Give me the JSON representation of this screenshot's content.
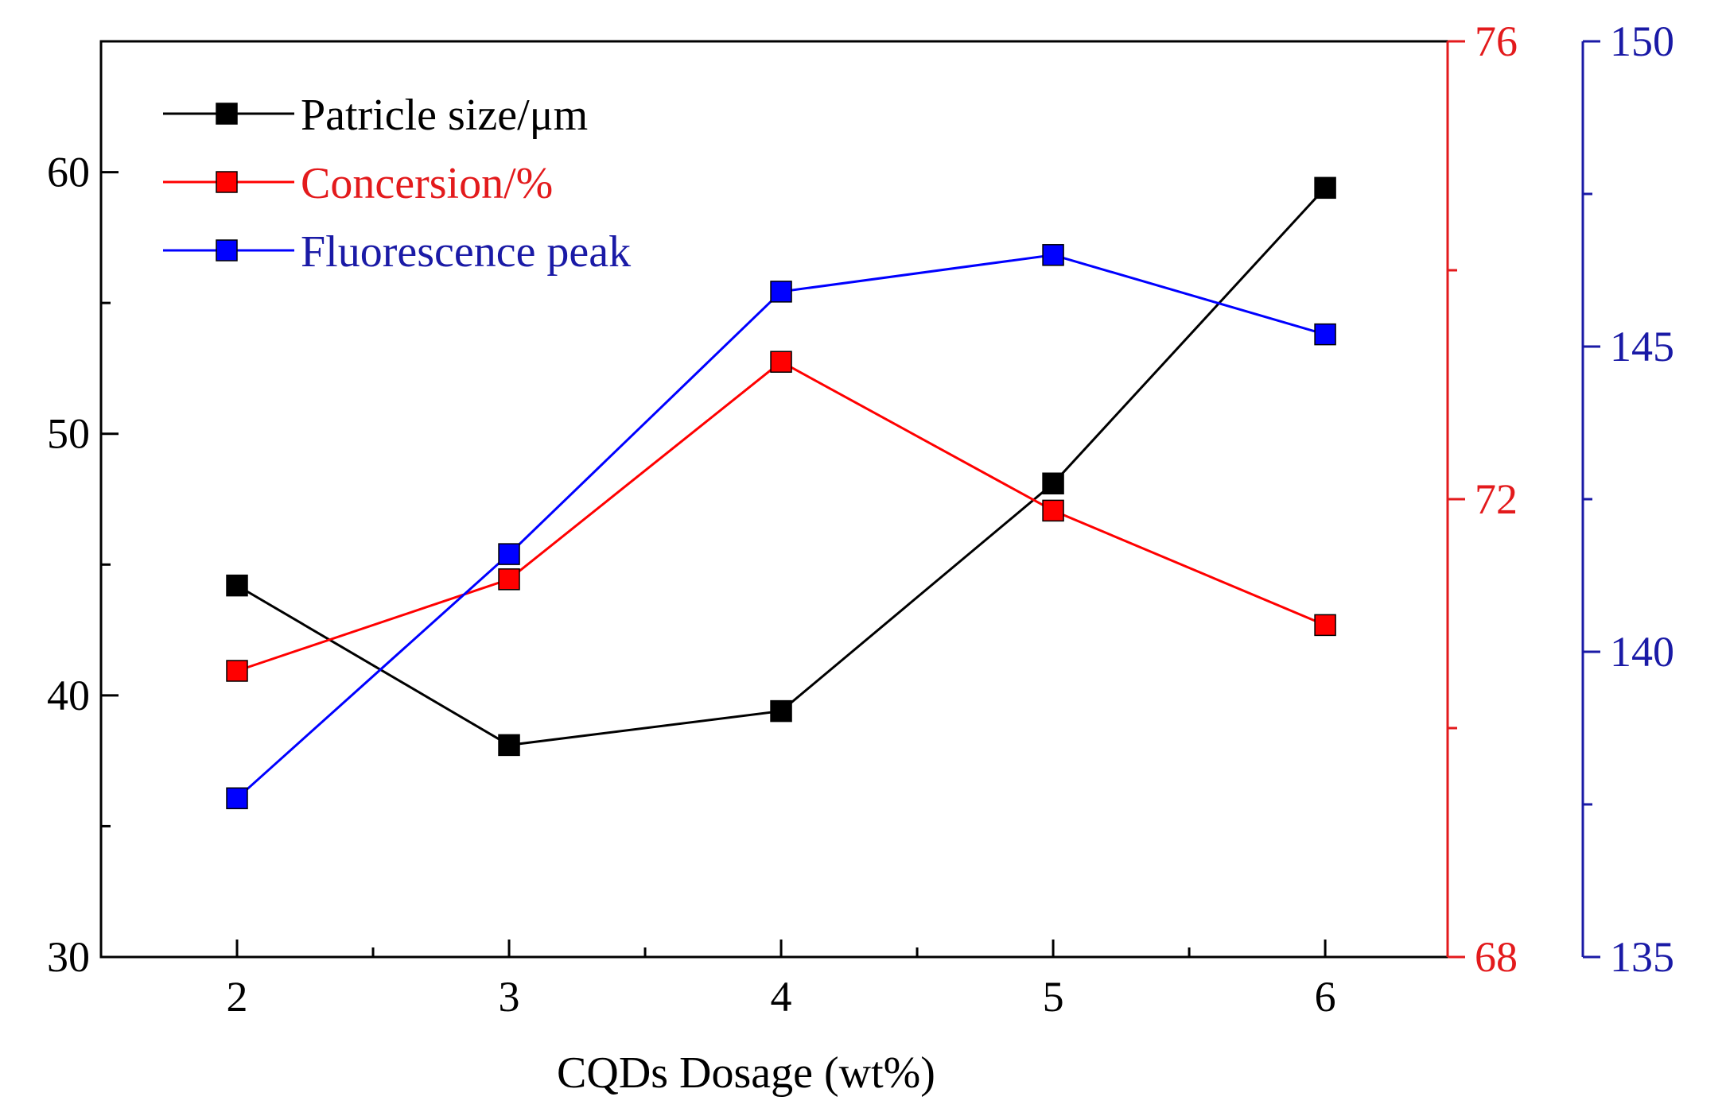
{
  "chart_data": {
    "type": "line",
    "title": "",
    "xlabel": "CQDs Dosage (wt%)",
    "x": [
      2,
      3,
      4,
      5,
      6
    ],
    "x_ticks": [
      "2",
      "3",
      "4",
      "5",
      "6"
    ],
    "xlim": [
      1.5,
      6.45
    ],
    "axes": {
      "left": {
        "ylim": [
          30,
          65
        ],
        "ticks": [
          "30",
          "40",
          "50",
          "60"
        ],
        "color": "#000000"
      },
      "right1": {
        "ylim": [
          68,
          76
        ],
        "ticks": [
          "68",
          "72",
          "76"
        ],
        "color": "#e31a1c"
      },
      "right2": {
        "ylim": [
          135,
          150
        ],
        "ticks": [
          "135",
          "140",
          "145",
          "150"
        ],
        "color": "#1a1aa6"
      }
    },
    "series": [
      {
        "name": "Patricle size/μm",
        "axis": "left",
        "color": "#000000",
        "values": [
          44.2,
          38.1,
          39.4,
          48.1,
          59.4
        ]
      },
      {
        "name": "Concersion/%",
        "axis": "right1",
        "color": "#ff0000",
        "text_color": "#e31a1c",
        "values": [
          70.5,
          71.3,
          73.2,
          71.9,
          70.9
        ]
      },
      {
        "name": "Fluorescence peak",
        "axis": "right2",
        "color": "#0000ff",
        "text_color": "#1a1aa6",
        "values": [
          137.6,
          141.6,
          145.9,
          146.5,
          145.2
        ]
      }
    ],
    "legend_position": "top-left"
  }
}
